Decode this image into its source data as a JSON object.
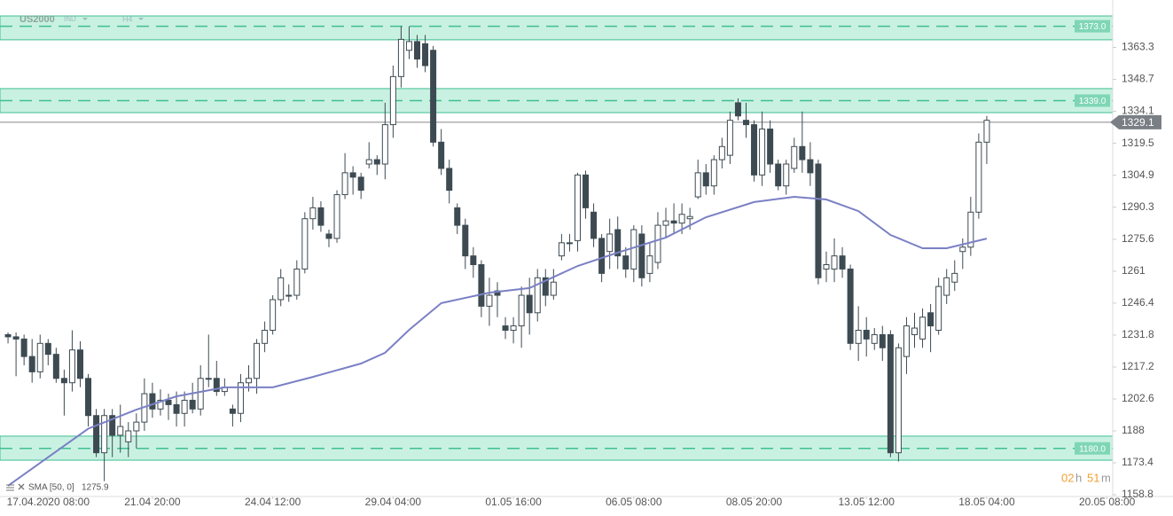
{
  "chart_data": {
    "type": "candlestick",
    "symbol": "US2000",
    "market": "IND",
    "timeframe": "H4",
    "open": [
      1232,
      1231,
      1230,
      1222,
      1215,
      1228,
      1223,
      1212,
      1210,
      1225,
      1212,
      1195,
      1178,
      1195,
      1186,
      1183,
      1188,
      1192,
      1205,
      1198,
      1202,
      1200,
      1196,
      1202,
      1198,
      1212,
      1212,
      1206,
      1198,
      1196,
      1210,
      1212,
      1228,
      1234,
      1248,
      1250,
      1250,
      1262,
      1285,
      1290,
      1278,
      1276,
      1296,
      1306,
      1304,
      1310,
      1312,
      1310,
      1328,
      1350,
      1362,
      1366,
      1365,
      1362,
      1320,
      1308,
      1290,
      1282,
      1268,
      1264,
      1245,
      1252,
      1236,
      1234,
      1236,
      1250,
      1242,
      1258,
      1250,
      1268,
      1274,
      1275,
      1305,
      1288,
      1276,
      1270,
      1280,
      1268,
      1262,
      1278,
      1260,
      1265,
      1282,
      1284,
      1283,
      1285,
      1295,
      1306,
      1300,
      1312,
      1314,
      1338,
      1330,
      1328,
      1305,
      1326,
      1310,
      1300,
      1308,
      1318,
      1312,
      1310,
      1262,
      1262,
      1268,
      1262,
      1228,
      1234,
      1228,
      1232,
      1232,
      1178,
      1222,
      1232,
      1230,
      1242,
      1234,
      1250,
      1256,
      1270,
      1272,
      1288,
      1320
    ],
    "high": [
      1233,
      1233,
      1232,
      1230,
      1232,
      1230,
      1226,
      1216,
      1234,
      1229,
      1214,
      1198,
      1198,
      1198,
      1200,
      1192,
      1196,
      1212,
      1210,
      1207,
      1205,
      1206,
      1206,
      1210,
      1218,
      1232,
      1220,
      1212,
      1200,
      1214,
      1218,
      1230,
      1238,
      1250,
      1262,
      1255,
      1266,
      1288,
      1295,
      1293,
      1280,
      1298,
      1315,
      1309,
      1306,
      1320,
      1314,
      1338,
      1355,
      1373,
      1373,
      1369,
      1369,
      1364,
      1326,
      1312,
      1292,
      1285,
      1272,
      1266,
      1258,
      1256,
      1240,
      1240,
      1254,
      1258,
      1262,
      1262,
      1262,
      1278,
      1278,
      1306,
      1307,
      1292,
      1278,
      1285,
      1286,
      1272,
      1282,
      1282,
      1274,
      1288,
      1290,
      1292,
      1292,
      1290,
      1312,
      1310,
      1314,
      1322,
      1334,
      1340,
      1338,
      1330,
      1334,
      1330,
      1312,
      1312,
      1322,
      1334,
      1320,
      1312,
      1270,
      1276,
      1272,
      1264,
      1245,
      1240,
      1235,
      1236,
      1234,
      1228,
      1240,
      1242,
      1244,
      1246,
      1258,
      1262,
      1266,
      1276,
      1295,
      1324,
      1332
    ],
    "low": [
      1228,
      1213,
      1218,
      1210,
      1212,
      1218,
      1210,
      1195,
      1206,
      1208,
      1190,
      1176,
      1165,
      1176,
      1178,
      1176,
      1180,
      1188,
      1194,
      1195,
      1193,
      1190,
      1190,
      1196,
      1195,
      1208,
      1204,
      1204,
      1190,
      1192,
      1206,
      1205,
      1224,
      1232,
      1245,
      1247,
      1248,
      1260,
      1280,
      1279,
      1272,
      1274,
      1294,
      1296,
      1294,
      1308,
      1305,
      1303,
      1322,
      1345,
      1358,
      1354,
      1352,
      1318,
      1305,
      1292,
      1278,
      1262,
      1258,
      1240,
      1236,
      1240,
      1230,
      1228,
      1226,
      1232,
      1238,
      1245,
      1248,
      1266,
      1270,
      1270,
      1285,
      1272,
      1256,
      1262,
      1262,
      1258,
      1256,
      1254,
      1256,
      1262,
      1276,
      1278,
      1278,
      1280,
      1294,
      1296,
      1296,
      1308,
      1310,
      1330,
      1322,
      1302,
      1300,
      1306,
      1298,
      1296,
      1306,
      1306,
      1300,
      1255,
      1256,
      1256,
      1258,
      1225,
      1220,
      1222,
      1225,
      1220,
      1176,
      1174,
      1214,
      1226,
      1226,
      1224,
      1232,
      1246,
      1252,
      1262,
      1268,
      1285,
      1310
    ],
    "close": [
      1231,
      1230,
      1222,
      1215,
      1228,
      1223,
      1212,
      1210,
      1225,
      1212,
      1195,
      1178,
      1195,
      1186,
      1190,
      1188,
      1192,
      1205,
      1198,
      1202,
      1200,
      1196,
      1202,
      1198,
      1212,
      1212,
      1206,
      1208,
      1196,
      1210,
      1212,
      1228,
      1234,
      1248,
      1258,
      1250,
      1262,
      1285,
      1290,
      1282,
      1276,
      1296,
      1306,
      1304,
      1298,
      1312,
      1310,
      1328,
      1350,
      1367,
      1366,
      1358,
      1355,
      1320,
      1308,
      1298,
      1282,
      1268,
      1264,
      1245,
      1250,
      1250,
      1234,
      1236,
      1250,
      1242,
      1258,
      1250,
      1256,
      1274,
      1274,
      1305,
      1290,
      1276,
      1260,
      1278,
      1268,
      1262,
      1280,
      1258,
      1268,
      1282,
      1284,
      1283,
      1287,
      1286,
      1306,
      1300,
      1312,
      1318,
      1330,
      1332,
      1328,
      1305,
      1326,
      1310,
      1300,
      1310,
      1318,
      1312,
      1306,
      1258,
      1264,
      1268,
      1262,
      1228,
      1234,
      1230,
      1232,
      1226,
      1178,
      1226,
      1236,
      1235,
      1240,
      1236,
      1254,
      1258,
      1260,
      1272,
      1288,
      1320,
      1330
    ],
    "colors": {
      "down": "#3d4a52",
      "up": "#ffffff",
      "outline": "#3d4a52",
      "sma": "#7a80c4",
      "zone": "#c9f1e2",
      "zone_line": "#3fbf94",
      "zone_label": "#7fd6b6",
      "price": "#7a7f85"
    },
    "sma": {
      "name": "SMA [50, 0]",
      "legend_value": 1275.9,
      "x": [
        0,
        10,
        16,
        21,
        27,
        33,
        38,
        44,
        47,
        50,
        54,
        60,
        65,
        71,
        76,
        82,
        87,
        93,
        98,
        102,
        106,
        110,
        114,
        117,
        122
      ],
      "values": [
        1162.9,
        1189,
        1197.7,
        1203.8,
        1207.9,
        1207.9,
        1212.7,
        1218.8,
        1223.7,
        1234.2,
        1246.4,
        1251.2,
        1253.3,
        1263.4,
        1269.5,
        1276.4,
        1285.7,
        1292.6,
        1295,
        1293.8,
        1288.5,
        1277.6,
        1271.5,
        1271.5,
        1275.9
      ]
    },
    "zones": [
      {
        "level": {
          "value": 1373,
          "label": "1373.0"
        },
        "top": 1377.7,
        "bottom": 1366.8
      },
      {
        "level": {
          "value": 1339,
          "label": "1339.0"
        },
        "top": 1344.5,
        "bottom": 1333.5
      },
      {
        "level": {
          "value": 1180,
          "label": "1180.0"
        },
        "top": 1185.6,
        "bottom": 1174.6
      }
    ],
    "current_price": 1329.1,
    "timer": [
      "02",
      "h",
      "51",
      "m"
    ],
    "xlim": [
      -1,
      137.7
    ],
    "xticks": [
      {
        "value": 5,
        "label": "17.04.2020 08:00"
      },
      {
        "value": 18,
        "label": "21.04 20:00"
      },
      {
        "value": 33,
        "label": "24.04 12:00"
      },
      {
        "value": 48,
        "label": "29.04 04:00"
      },
      {
        "value": 63,
        "label": "01.05 16:00"
      },
      {
        "value": 78,
        "label": "06.05 08:00"
      },
      {
        "value": 93,
        "label": "08.05 20:00"
      },
      {
        "value": 107,
        "label": "13.05 12:00"
      },
      {
        "value": 122,
        "label": "18.05 04:00"
      },
      {
        "value": 137,
        "label": "20.05 08:00"
      }
    ],
    "ylim": [
      1158,
      1385
    ],
    "yticks": [
      1363.3,
      1348.7,
      1334.1,
      1319.5,
      1304.9,
      1290.3,
      1275.6,
      1261,
      1246.4,
      1231.8,
      1217.2,
      1202.6,
      1188,
      1173.4,
      1158.8
    ]
  }
}
